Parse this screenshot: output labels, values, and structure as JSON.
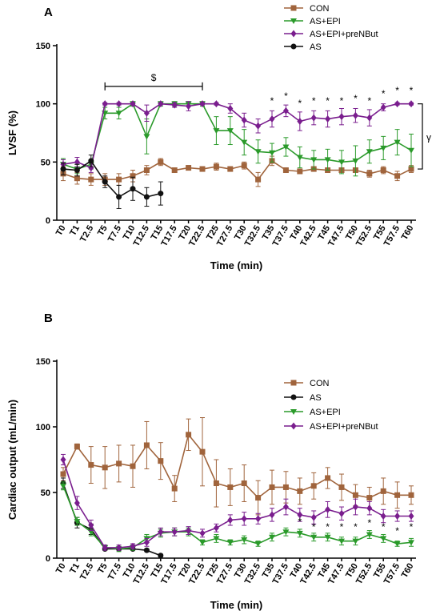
{
  "x_labels": [
    "T0",
    "T1",
    "T2.5",
    "T5",
    "T7.5",
    "T10",
    "T12.5",
    "T15",
    "T17.5",
    "T20",
    "T22.5",
    "T25",
    "T27.5",
    "T30",
    "T32.5",
    "T35",
    "T37.5",
    "T40",
    "T42.5",
    "T45",
    "T47.5",
    "T50",
    "T52.5",
    "T55",
    "T57.5",
    "T60"
  ],
  "colors": {
    "CON": "#a0643c",
    "AS": "#111111",
    "AS+EPI": "#2a9a2a",
    "AS+EPI+preNBut": "#7a1e8e"
  },
  "chart_data": [
    {
      "type": "line",
      "panel_letter": "A",
      "xlabel": "Time (min)",
      "ylabel": "LVSF (%)",
      "ylim": [
        0,
        150
      ],
      "yticks": [
        0,
        50,
        100,
        150
      ],
      "legend_placement": "top-right",
      "categories": [
        "T0",
        "T1",
        "T2.5",
        "T5",
        "T7.5",
        "T10",
        "T12.5",
        "T15",
        "T17.5",
        "T20",
        "T22.5",
        "T25",
        "T27.5",
        "T30",
        "T32.5",
        "T35",
        "T37.5",
        "T40",
        "T42.5",
        "T45",
        "T47.5",
        "T50",
        "T52.5",
        "T55",
        "T57.5",
        "T60"
      ],
      "series": [
        {
          "name": "CON",
          "marker": "square",
          "values": [
            40,
            36,
            35,
            35,
            35,
            38,
            43,
            50,
            43,
            45,
            44,
            46,
            44,
            47,
            35,
            51,
            43,
            42,
            44,
            43,
            43,
            43,
            40,
            43,
            38,
            44
          ],
          "errors": [
            6,
            5,
            5,
            5,
            5,
            5,
            4,
            3,
            2,
            2,
            2,
            3,
            2,
            3,
            6,
            4,
            2,
            2,
            2,
            2,
            2,
            2,
            3,
            3,
            4,
            3
          ]
        },
        {
          "name": "AS+EPI",
          "marker": "triangle-down",
          "values": [
            48,
            44,
            48,
            92,
            92,
            100,
            72,
            100,
            100,
            100,
            100,
            77,
            77,
            67,
            59,
            58,
            63,
            54,
            52,
            52,
            50,
            51,
            59,
            62,
            67,
            60
          ],
          "errors": [
            5,
            4,
            4,
            5,
            5,
            2,
            15,
            2,
            2,
            2,
            2,
            12,
            12,
            11,
            10,
            8,
            8,
            9,
            8,
            9,
            10,
            13,
            10,
            10,
            11,
            14
          ]
        },
        {
          "name": "AS+EPI+preNBut",
          "marker": "diamond",
          "values": [
            48,
            50,
            45,
            100,
            100,
            100,
            92,
            100,
            99,
            98,
            100,
            100,
            96,
            86,
            81,
            87,
            94,
            85,
            88,
            87,
            89,
            90,
            88,
            97,
            100,
            100
          ],
          "errors": [
            4,
            4,
            4,
            1,
            1,
            1,
            7,
            1,
            2,
            4,
            1,
            1,
            4,
            6,
            6,
            7,
            5,
            8,
            6,
            7,
            7,
            6,
            7,
            3,
            1,
            1
          ]
        },
        {
          "name": "AS",
          "marker": "circle",
          "values": [
            44,
            43,
            51,
            33,
            20,
            27,
            20,
            23,
            null,
            null,
            null,
            null,
            null,
            null,
            null,
            null,
            null,
            null,
            null,
            null,
            null,
            null,
            null,
            null,
            null,
            null
          ],
          "errors": [
            5,
            5,
            5,
            5,
            10,
            10,
            8,
            10,
            null,
            null,
            null,
            null,
            null,
            null,
            null,
            null,
            null,
            null,
            null,
            null,
            null,
            null,
            null,
            null,
            null,
            null
          ]
        }
      ],
      "legend_order": [
        "CON",
        "AS+EPI",
        "AS+EPI+preNBut",
        "AS"
      ],
      "annotations": {
        "bracket": {
          "from": "T5",
          "to": "T22.5",
          "y": 115,
          "label": "$"
        },
        "star": "*",
        "star_points": [
          "T35",
          "T37.5",
          "T40",
          "T42.5",
          "T45",
          "T47.5",
          "T50",
          "T52.5",
          "T55",
          "T57.5",
          "T60"
        ],
        "star_y": [
          104,
          108,
          102,
          104,
          104,
          104,
          106,
          104,
          110,
          113,
          113
        ],
        "side_bracket": {
          "y_from": 44,
          "y_to": 100,
          "label": "γ"
        }
      }
    },
    {
      "type": "line",
      "panel_letter": "B",
      "xlabel": "Time (min)",
      "ylabel": "Cardiac output (mL/min)",
      "ylim": [
        0,
        150
      ],
      "yticks": [
        0,
        50,
        100,
        150
      ],
      "legend_placement": "top-right",
      "categories": [
        "T0",
        "T1",
        "T2.5",
        "T5",
        "T7.5",
        "T10",
        "T12.5",
        "T15",
        "T17.5",
        "T20",
        "T22.5",
        "T25",
        "T27.5",
        "T30",
        "T32.5",
        "T35",
        "T37.5",
        "T40",
        "T42.5",
        "T45",
        "T47.5",
        "T50",
        "T52.5",
        "T55",
        "T57.5",
        "T60"
      ],
      "series": [
        {
          "name": "CON",
          "marker": "square",
          "values": [
            64,
            85,
            71,
            69,
            72,
            70,
            86,
            74,
            53,
            94,
            81,
            57,
            54,
            57,
            46,
            54,
            54,
            51,
            55,
            61,
            54,
            48,
            46,
            51,
            48,
            48
          ],
          "errors": [
            5,
            2,
            14,
            16,
            14,
            16,
            18,
            14,
            10,
            12,
            26,
            18,
            14,
            14,
            13,
            13,
            12,
            10,
            10,
            8,
            10,
            8,
            8,
            10,
            10,
            7
          ]
        },
        {
          "name": "AS",
          "marker": "circle",
          "values": [
            57,
            27,
            22,
            7,
            7,
            7,
            6,
            2,
            null,
            null,
            null,
            null,
            null,
            null,
            null,
            null,
            null,
            null,
            null,
            null,
            null,
            null,
            null,
            null,
            null,
            null
          ],
          "errors": [
            4,
            4,
            4,
            1,
            1,
            1,
            1,
            1,
            null,
            null,
            null,
            null,
            null,
            null,
            null,
            null,
            null,
            null,
            null,
            null,
            null,
            null,
            null,
            null,
            null,
            null
          ]
        },
        {
          "name": "AS+EPI",
          "marker": "triangle-down",
          "values": [
            55,
            28,
            20,
            8,
            7,
            8,
            15,
            19,
            20,
            20,
            12,
            15,
            12,
            14,
            11,
            16,
            20,
            19,
            16,
            16,
            13,
            13,
            18,
            15,
            11,
            12
          ],
          "errors": [
            3,
            3,
            3,
            2,
            2,
            2,
            3,
            3,
            3,
            3,
            2,
            3,
            2,
            3,
            2,
            3,
            3,
            3,
            3,
            3,
            3,
            3,
            3,
            3,
            2,
            3
          ]
        },
        {
          "name": "AS+EPI+preNBut",
          "marker": "diamond",
          "values": [
            75,
            42,
            25,
            8,
            8,
            9,
            12,
            20,
            20,
            21,
            19,
            23,
            29,
            30,
            30,
            33,
            39,
            33,
            31,
            37,
            34,
            39,
            38,
            32,
            32,
            32
          ],
          "errors": [
            4,
            5,
            4,
            2,
            2,
            2,
            3,
            3,
            3,
            3,
            3,
            3,
            4,
            5,
            4,
            5,
            6,
            5,
            5,
            6,
            5,
            6,
            5,
            5,
            4,
            4
          ]
        }
      ],
      "legend_order": [
        "CON",
        "AS",
        "AS+EPI",
        "AS+EPI+preNBut"
      ],
      "annotations": {
        "star": "*",
        "star_points": [
          "T40",
          "T42.5",
          "T45",
          "T47.5",
          "T50",
          "T52.5",
          "T55",
          "T57.5",
          "T60"
        ],
        "star_y": [
          29,
          25,
          25,
          25,
          25,
          28,
          25,
          22,
          25
        ]
      }
    }
  ]
}
